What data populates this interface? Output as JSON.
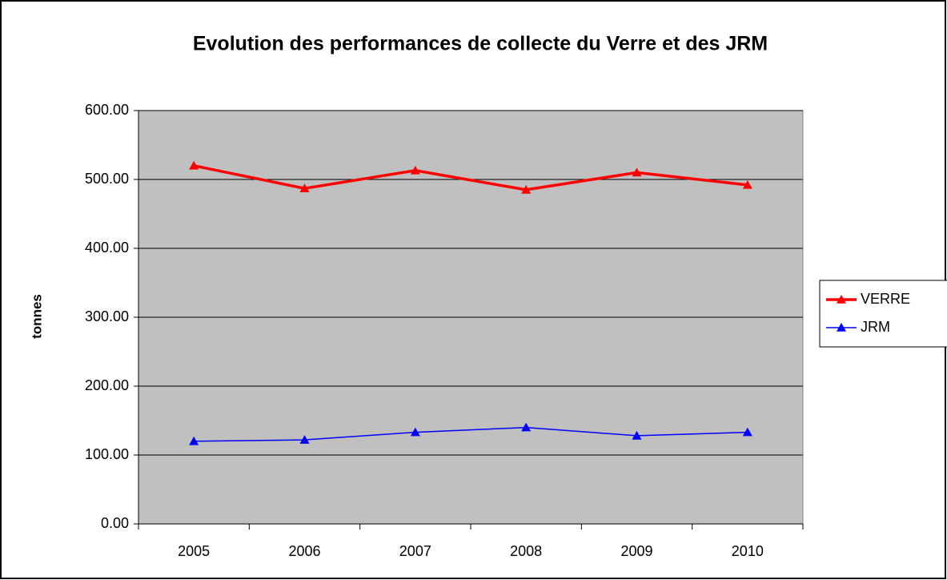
{
  "chart_data": {
    "type": "line",
    "title": "Evolution des performances de collecte du Verre et des JRM",
    "y_label": "tonnes",
    "categories": [
      "2005",
      "2006",
      "2007",
      "2008",
      "2009",
      "2010"
    ],
    "series": [
      {
        "name": "VERRE",
        "color": "#ff0000",
        "values": [
          520,
          487,
          513,
          485,
          510,
          492
        ]
      },
      {
        "name": "JRM",
        "color": "#0000ff",
        "values": [
          120,
          122,
          133,
          140,
          128,
          133
        ]
      }
    ],
    "ylim": [
      0,
      600
    ],
    "yticks": [
      {
        "value": 0,
        "label": "0.00"
      },
      {
        "value": 100,
        "label": "100.00"
      },
      {
        "value": 200,
        "label": "200.00"
      },
      {
        "value": 300,
        "label": "300.00"
      },
      {
        "value": 400,
        "label": "400.00"
      },
      {
        "value": 500,
        "label": "500.00"
      },
      {
        "value": 600,
        "label": "600.00"
      }
    ],
    "grid": true,
    "legend": "right"
  }
}
